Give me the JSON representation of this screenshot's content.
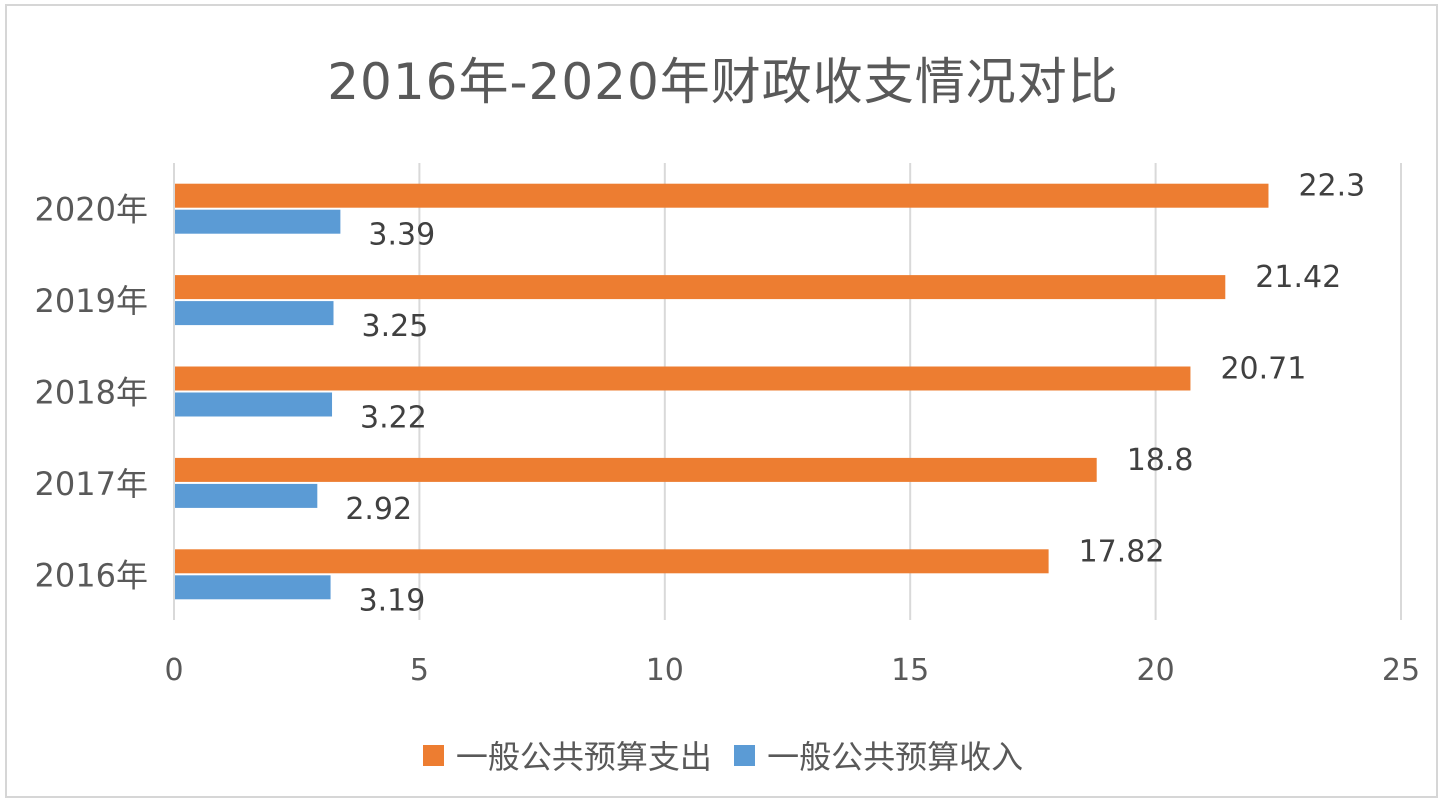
{
  "chart_data": {
    "type": "bar",
    "orientation": "horizontal",
    "title": "2016年-2020年财政收支情况对比",
    "categories": [
      "2016年",
      "2017年",
      "2018年",
      "2019年",
      "2020年"
    ],
    "series": [
      {
        "name": "一般公共预算支出",
        "color": "#ed7d31",
        "values": [
          17.82,
          18.8,
          20.71,
          21.42,
          22.3
        ]
      },
      {
        "name": "一般公共预算收入",
        "color": "#5b9bd5",
        "values": [
          3.19,
          2.92,
          3.22,
          3.25,
          3.39
        ]
      }
    ],
    "xlim": [
      0,
      25
    ],
    "xticks": [
      0,
      5,
      10,
      15,
      20,
      25
    ],
    "xlabel": "",
    "ylabel": "",
    "grid": true,
    "legend_position": "bottom"
  }
}
